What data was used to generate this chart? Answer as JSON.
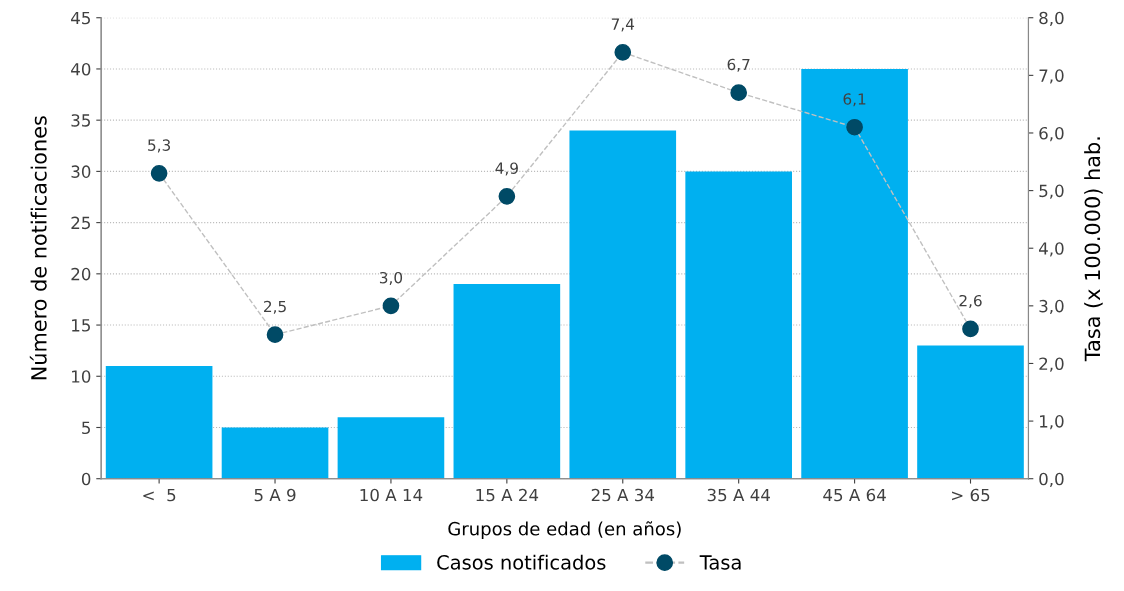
{
  "chart_data": {
    "type": "bar",
    "xlabel": "Grupos de edad (en años)",
    "ylabel": "Número de notificaciones",
    "y2label": "Tasa (x 100.000) hab.",
    "categories": [
      "<  5",
      "5 A 9",
      "10 A 14",
      "15 A 24",
      "25 A 34",
      "35 A 44",
      "45 A 64",
      "> 65"
    ],
    "series": [
      {
        "name": "Casos notificados",
        "color": "#00b0f0",
        "values": [
          11,
          5,
          6,
          19,
          34,
          30,
          40,
          13
        ]
      },
      {
        "name": "Tasa",
        "type": "line",
        "axis": "y2",
        "color": "#004a66",
        "marker": "circle",
        "line_style": "dashed",
        "values": [
          5.3,
          2.5,
          3.0,
          4.9,
          7.4,
          6.7,
          6.1,
          2.6
        ],
        "value_labels": [
          "5,3",
          "2,5",
          "3,0",
          "4,9",
          "7,4",
          "6,7",
          "6,1",
          "2,6"
        ]
      }
    ],
    "ylim": [
      0,
      45
    ],
    "yticks": [
      0,
      5,
      10,
      15,
      20,
      25,
      30,
      35,
      40,
      45
    ],
    "y2lim": [
      0,
      8
    ],
    "y2ticks": [
      {
        "value": 0,
        "label": "0,0"
      },
      {
        "value": 1,
        "label": "1,0"
      },
      {
        "value": 2,
        "label": "2,0"
      },
      {
        "value": 3,
        "label": "3,0"
      },
      {
        "value": 4,
        "label": "4,0"
      },
      {
        "value": 5,
        "label": "5,0"
      },
      {
        "value": 6,
        "label": "6,0"
      },
      {
        "value": 7,
        "label": "7,0"
      },
      {
        "value": 8,
        "label": "8,0"
      }
    ],
    "grid": "y",
    "legend": "bottom"
  }
}
